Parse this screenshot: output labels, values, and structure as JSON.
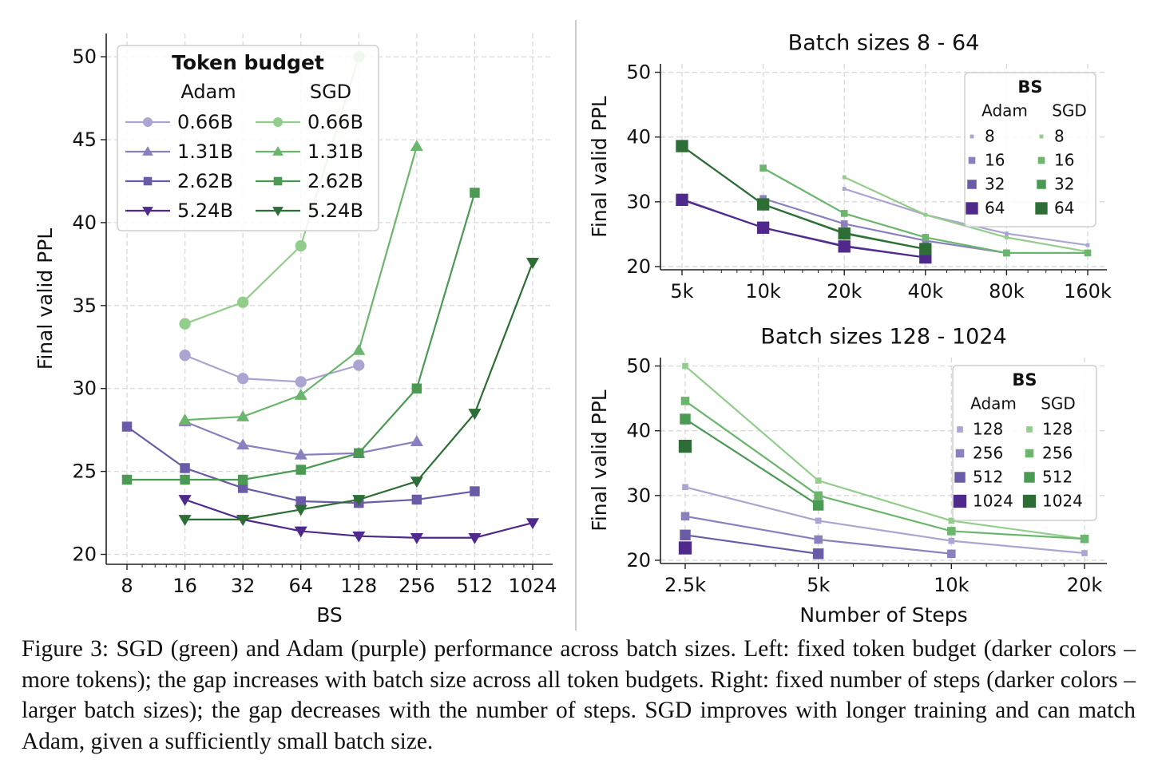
{
  "chart_data": [
    {
      "type": "line",
      "id": "left",
      "xlabel": "BS",
      "ylabel": "Final valid PPL",
      "x_scale": "log2",
      "xticks": [
        8,
        16,
        32,
        64,
        128,
        256,
        512,
        1024
      ],
      "xtick_labels": [
        "8",
        "16",
        "32",
        "64",
        "128",
        "256",
        "512",
        "1024"
      ],
      "yticks": [
        20,
        25,
        30,
        35,
        40,
        45,
        50
      ],
      "ylim": [
        19.4,
        51.4
      ],
      "legend": {
        "title": "Token budget",
        "placement": "top-left",
        "col_headers": [
          "Adam",
          "SGD"
        ],
        "labels": [
          "0.66B",
          "1.31B",
          "2.62B",
          "5.24B"
        ]
      },
      "series": [
        {
          "name": "Adam 0.66B",
          "opt": "adam",
          "level": 0,
          "marker": "circle",
          "x": [
            16,
            32,
            64,
            128
          ],
          "y": [
            32.0,
            30.6,
            30.4,
            31.4
          ]
        },
        {
          "name": "Adam 1.31B",
          "opt": "adam",
          "level": 1,
          "marker": "triangle-up",
          "x": [
            16,
            32,
            64,
            128,
            256
          ],
          "y": [
            28.0,
            26.6,
            26.0,
            26.1,
            26.8
          ]
        },
        {
          "name": "Adam 2.62B",
          "opt": "adam",
          "level": 2,
          "marker": "square",
          "x": [
            8,
            16,
            32,
            64,
            128,
            256,
            512
          ],
          "y": [
            27.7,
            25.2,
            24.0,
            23.2,
            23.1,
            23.3,
            23.8
          ]
        },
        {
          "name": "Adam 5.24B",
          "opt": "adam",
          "level": 3,
          "marker": "triangle-down",
          "x": [
            16,
            32,
            64,
            128,
            256,
            512,
            1024
          ],
          "y": [
            23.3,
            22.1,
            21.4,
            21.1,
            21.0,
            21.0,
            21.9
          ]
        },
        {
          "name": "SGD 0.66B",
          "opt": "sgd",
          "level": 0,
          "marker": "circle",
          "x": [
            16,
            32,
            64,
            128
          ],
          "y": [
            33.9,
            35.2,
            38.6,
            50.0
          ]
        },
        {
          "name": "SGD 1.31B",
          "opt": "sgd",
          "level": 1,
          "marker": "triangle-up",
          "x": [
            16,
            32,
            64,
            128,
            256
          ],
          "y": [
            28.1,
            28.3,
            29.6,
            32.3,
            44.6
          ]
        },
        {
          "name": "SGD 2.62B",
          "opt": "sgd",
          "level": 2,
          "marker": "square",
          "x": [
            8,
            16,
            32,
            64,
            128,
            256,
            512
          ],
          "y": [
            24.5,
            24.5,
            24.5,
            25.1,
            26.1,
            30.0,
            41.8
          ]
        },
        {
          "name": "SGD 5.24B",
          "opt": "sgd",
          "level": 3,
          "marker": "triangle-down",
          "x": [
            16,
            32,
            64,
            128,
            256,
            512,
            1024
          ],
          "y": [
            22.1,
            22.1,
            22.7,
            23.3,
            24.4,
            28.5,
            37.6
          ]
        }
      ]
    },
    {
      "type": "line",
      "id": "top-right",
      "title": "Batch sizes 8 - 64",
      "xlabel": "",
      "ylabel": "Final valid PPL",
      "x_scale": "log2",
      "xticks": [
        5000,
        10000,
        20000,
        40000,
        80000,
        160000
      ],
      "xtick_labels": [
        "5k",
        "10k",
        "20k",
        "40k",
        "80k",
        "160k"
      ],
      "yticks": [
        20,
        30,
        40,
        50
      ],
      "ylim": [
        19.5,
        51.3
      ],
      "legend": {
        "title": "BS",
        "placement": "top-right",
        "col_headers": [
          "Adam",
          "SGD"
        ],
        "labels": [
          "8",
          "16",
          "32",
          "64"
        ]
      },
      "series": [
        {
          "name": "Adam 8",
          "opt": "adam",
          "level": 0,
          "x": [
            20000,
            40000,
            80000,
            160000
          ],
          "y": [
            32.0,
            28.0,
            25.1,
            23.3
          ]
        },
        {
          "name": "Adam 16",
          "opt": "adam",
          "level": 1,
          "x": [
            10000,
            20000,
            40000,
            80000
          ],
          "y": [
            30.5,
            26.6,
            24.0,
            22.1
          ]
        },
        {
          "name": "Adam 32",
          "opt": "adam",
          "level": 2,
          "x": [
            5000,
            10000,
            20000,
            40000
          ],
          "y": [
            30.4,
            26.0,
            23.2,
            21.4
          ]
        },
        {
          "name": "Adam 64",
          "opt": "adam",
          "level": 3,
          "x": [
            5000,
            10000,
            20000,
            40000
          ],
          "y": [
            30.3,
            26.0,
            23.1,
            21.4
          ]
        },
        {
          "name": "SGD 8",
          "opt": "sgd",
          "level": 0,
          "x": [
            20000,
            40000,
            80000,
            160000
          ],
          "y": [
            33.8,
            28.0,
            24.5,
            22.3
          ]
        },
        {
          "name": "SGD 16",
          "opt": "sgd",
          "level": 1,
          "x": [
            10000,
            20000,
            40000,
            80000,
            160000
          ],
          "y": [
            35.2,
            28.2,
            24.5,
            22.1,
            22.1
          ]
        },
        {
          "name": "SGD 32",
          "opt": "sgd",
          "level": 2,
          "x": [
            5000,
            10000,
            20000,
            40000
          ],
          "y": [
            38.6,
            29.6,
            25.2,
            22.7
          ]
        },
        {
          "name": "SGD 64",
          "opt": "sgd",
          "level": 3,
          "x": [
            5000,
            10000,
            20000,
            40000
          ],
          "y": [
            38.6,
            29.6,
            25.1,
            22.7
          ]
        }
      ]
    },
    {
      "type": "line",
      "id": "bottom-right",
      "title": "Batch sizes 128 - 1024",
      "xlabel": "Number of Steps",
      "ylabel": "Final valid PPL",
      "x_scale": "log2",
      "xticks": [
        2500,
        5000,
        10000,
        20000
      ],
      "xtick_labels": [
        "2.5k",
        "5k",
        "10k",
        "20k"
      ],
      "yticks": [
        20,
        30,
        40,
        50
      ],
      "ylim": [
        19.5,
        51.3
      ],
      "legend": {
        "title": "BS",
        "placement": "top-right",
        "col_headers": [
          "Adam",
          "SGD"
        ],
        "labels": [
          "128",
          "256",
          "512",
          "1024"
        ]
      },
      "series": [
        {
          "name": "Adam 128",
          "opt": "adam",
          "level": 0,
          "x": [
            2500,
            5000,
            10000,
            20000
          ],
          "y": [
            31.3,
            26.1,
            23.0,
            21.1
          ]
        },
        {
          "name": "Adam 256",
          "opt": "adam",
          "level": 1,
          "x": [
            2500,
            5000,
            10000
          ],
          "y": [
            26.8,
            23.2,
            21.0
          ]
        },
        {
          "name": "Adam 512",
          "opt": "adam",
          "level": 2,
          "x": [
            2500,
            5000
          ],
          "y": [
            23.9,
            21.0
          ]
        },
        {
          "name": "Adam 1024",
          "opt": "adam",
          "level": 3,
          "x": [
            2500
          ],
          "y": [
            21.9
          ]
        },
        {
          "name": "SGD 128",
          "opt": "sgd",
          "level": 0,
          "x": [
            2500,
            5000,
            10000,
            20000
          ],
          "y": [
            50.0,
            32.3,
            26.1,
            23.3
          ]
        },
        {
          "name": "SGD 256",
          "opt": "sgd",
          "level": 1,
          "x": [
            2500,
            5000,
            10000,
            20000
          ],
          "y": [
            44.6,
            30.0,
            24.5,
            23.3
          ]
        },
        {
          "name": "SGD 512",
          "opt": "sgd",
          "level": 2,
          "x": [
            2500,
            5000
          ],
          "y": [
            41.8,
            28.5
          ]
        },
        {
          "name": "SGD 1024",
          "opt": "sgd",
          "level": 3,
          "x": [
            2500
          ],
          "y": [
            37.6
          ]
        }
      ]
    }
  ],
  "palette": {
    "adam": [
      "#aba5d1",
      "#8a80bd",
      "#6b5ba7",
      "#4f2a8c"
    ],
    "sgd": [
      "#92cd8b",
      "#6bb66c",
      "#4a9a54",
      "#2d6e36"
    ],
    "grid": "#d9d9d9",
    "axis": "#222222",
    "divider": "#cccccc"
  },
  "caption": "Figure 3: SGD (green) and Adam (purple) performance across batch sizes. Left: fixed token budget (darker colors – more tokens); the gap increases with batch size across all token budgets. Right: fixed number of steps (darker colors – larger batch sizes); the gap decreases with the number of steps. SGD improves with longer training and can match Adam, given a sufficiently small batch size."
}
